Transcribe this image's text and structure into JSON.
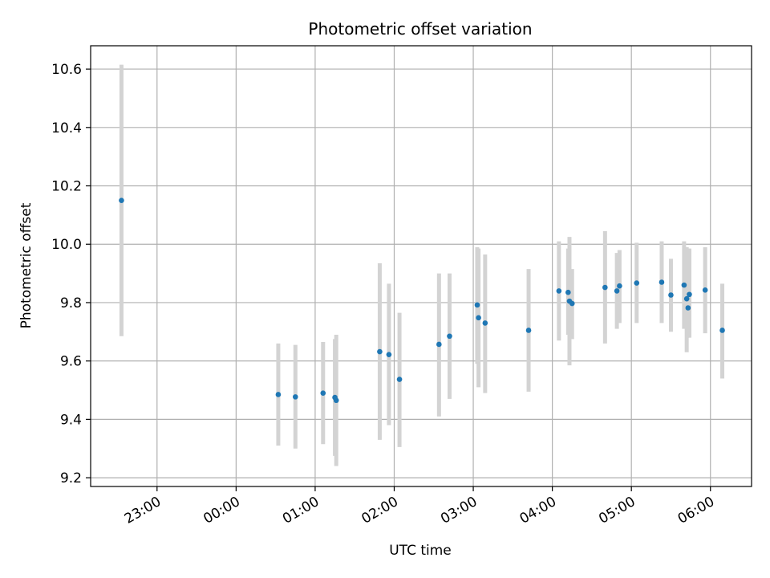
{
  "chart_data": {
    "type": "scatter",
    "title": "Photometric offset variation",
    "xlabel": "UTC time",
    "ylabel": "Photometric offset",
    "x_ticks": [
      "23:00",
      "00:00",
      "01:00",
      "02:00",
      "03:00",
      "04:00",
      "05:00",
      "06:00"
    ],
    "x_tick_hours": [
      23,
      24,
      25,
      26,
      27,
      28,
      29,
      30
    ],
    "xlim_hours": [
      22.16,
      30.52
    ],
    "y_ticks": [
      "9.2",
      "9.4",
      "9.6",
      "9.8",
      "10.0",
      "10.2",
      "10.4",
      "10.6"
    ],
    "y_tick_values": [
      9.2,
      9.4,
      9.6,
      9.8,
      10.0,
      10.2,
      10.4,
      10.6
    ],
    "ylim": [
      9.17,
      10.68
    ],
    "grid": true,
    "colors": {
      "point": "#1f77b4",
      "errorbar": "#d3d3d3",
      "grid": "#b0b0b0"
    },
    "series": [
      {
        "points": [
          {
            "x": "22:33",
            "y": 10.15,
            "yerr_low": 9.685,
            "yerr_high": 10.615
          },
          {
            "x": "00:32",
            "y": 9.485,
            "yerr_low": 9.31,
            "yerr_high": 9.66
          },
          {
            "x": "00:45",
            "y": 9.477,
            "yerr_low": 9.3,
            "yerr_high": 9.655
          },
          {
            "x": "01:06",
            "y": 9.49,
            "yerr_low": 9.315,
            "yerr_high": 9.665
          },
          {
            "x": "01:15",
            "y": 9.475,
            "yerr_low": 9.275,
            "yerr_high": 9.675
          },
          {
            "x": "01:16",
            "y": 9.465,
            "yerr_low": 9.24,
            "yerr_high": 9.69
          },
          {
            "x": "01:49",
            "y": 9.632,
            "yerr_low": 9.33,
            "yerr_high": 9.935
          },
          {
            "x": "01:56",
            "y": 9.622,
            "yerr_low": 9.38,
            "yerr_high": 9.865
          },
          {
            "x": "02:04",
            "y": 9.537,
            "yerr_low": 9.305,
            "yerr_high": 9.765
          },
          {
            "x": "02:34",
            "y": 9.657,
            "yerr_low": 9.41,
            "yerr_high": 9.9
          },
          {
            "x": "02:42",
            "y": 9.685,
            "yerr_low": 9.47,
            "yerr_high": 9.9
          },
          {
            "x": "03:03",
            "y": 9.792,
            "yerr_low": 9.59,
            "yerr_high": 9.99
          },
          {
            "x": "03:04",
            "y": 9.748,
            "yerr_low": 9.51,
            "yerr_high": 9.985
          },
          {
            "x": "03:09",
            "y": 9.73,
            "yerr_low": 9.49,
            "yerr_high": 9.965
          },
          {
            "x": "03:42",
            "y": 9.705,
            "yerr_low": 9.495,
            "yerr_high": 9.915
          },
          {
            "x": "04:05",
            "y": 9.84,
            "yerr_low": 9.67,
            "yerr_high": 10.01
          },
          {
            "x": "04:12",
            "y": 9.835,
            "yerr_low": 9.69,
            "yerr_high": 9.985
          },
          {
            "x": "04:13",
            "y": 9.805,
            "yerr_low": 9.585,
            "yerr_high": 10.025
          },
          {
            "x": "04:15",
            "y": 9.797,
            "yerr_low": 9.675,
            "yerr_high": 9.915
          },
          {
            "x": "04:40",
            "y": 9.852,
            "yerr_low": 9.66,
            "yerr_high": 10.045
          },
          {
            "x": "04:49",
            "y": 9.84,
            "yerr_low": 9.71,
            "yerr_high": 9.97
          },
          {
            "x": "04:51",
            "y": 9.857,
            "yerr_low": 9.73,
            "yerr_high": 9.98
          },
          {
            "x": "05:04",
            "y": 9.867,
            "yerr_low": 9.73,
            "yerr_high": 10.005
          },
          {
            "x": "05:23",
            "y": 9.87,
            "yerr_low": 9.73,
            "yerr_high": 10.01
          },
          {
            "x": "05:30",
            "y": 9.826,
            "yerr_low": 9.7,
            "yerr_high": 9.95
          },
          {
            "x": "05:40",
            "y": 9.86,
            "yerr_low": 9.71,
            "yerr_high": 10.01
          },
          {
            "x": "05:42",
            "y": 9.813,
            "yerr_low": 9.63,
            "yerr_high": 9.99
          },
          {
            "x": "05:43",
            "y": 9.782,
            "yerr_low": 9.68,
            "yerr_high": 9.985
          },
          {
            "x": "05:44",
            "y": 9.828,
            "yerr_low": 9.68,
            "yerr_high": 9.985
          },
          {
            "x": "05:56",
            "y": 9.843,
            "yerr_low": 9.695,
            "yerr_high": 9.99
          },
          {
            "x": "06:09",
            "y": 9.705,
            "yerr_low": 9.54,
            "yerr_high": 9.865
          }
        ]
      }
    ]
  }
}
